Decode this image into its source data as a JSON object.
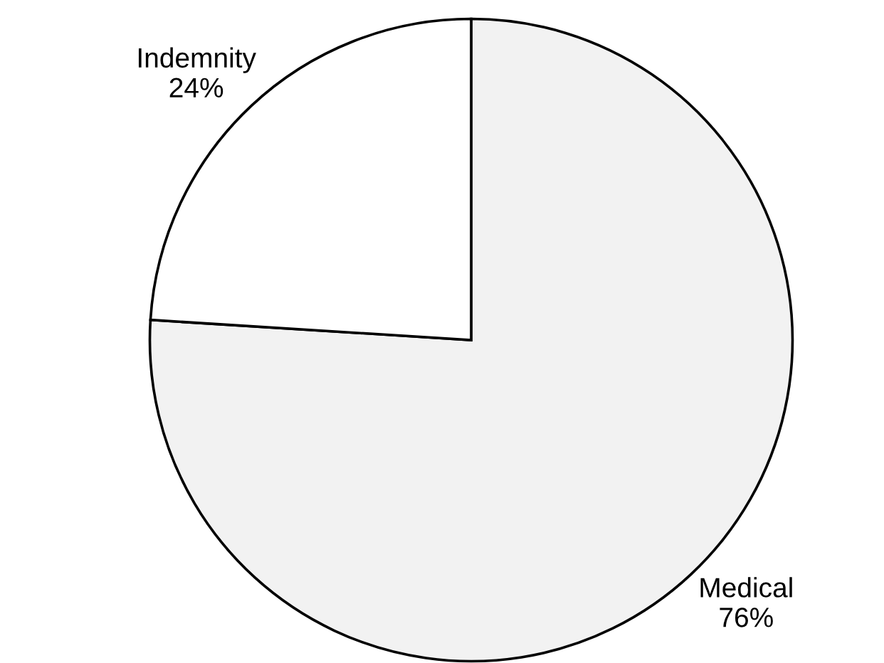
{
  "chart_data": {
    "type": "pie",
    "categories": [
      "Medical",
      "Indemnity"
    ],
    "values": [
      76,
      24
    ],
    "colors": [
      "#f2f2f2",
      "#ffffff"
    ],
    "value_labels": [
      "76%",
      "24%"
    ]
  }
}
